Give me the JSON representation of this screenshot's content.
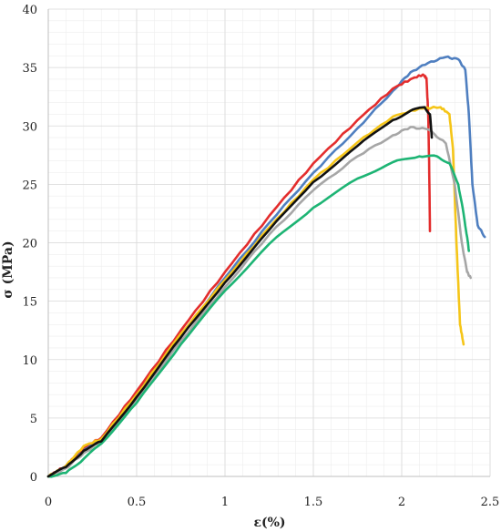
{
  "chart_data": {
    "type": "line",
    "xlabel": "ε(%)",
    "ylabel": "σ (MPa)",
    "xlim": [
      0,
      2.5
    ],
    "ylim": [
      0,
      40
    ],
    "xticks": [
      "0",
      "0.5",
      "1",
      "1.5",
      "2",
      "2.5"
    ],
    "yticks": [
      "0",
      "5",
      "10",
      "15",
      "20",
      "25",
      "30",
      "35",
      "40"
    ],
    "grid": true,
    "series": [
      {
        "color": "#4f7fc0",
        "points": [
          [
            0,
            0
          ],
          [
            0.1,
            0.8
          ],
          [
            0.2,
            2.4
          ],
          [
            0.3,
            3.1
          ],
          [
            0.5,
            7.0
          ],
          [
            0.75,
            12.0
          ],
          [
            1.0,
            17.0
          ],
          [
            1.25,
            21.7
          ],
          [
            1.5,
            26.0
          ],
          [
            1.75,
            29.8
          ],
          [
            1.95,
            33.0
          ],
          [
            2.05,
            34.6
          ],
          [
            2.15,
            35.4
          ],
          [
            2.25,
            35.9
          ],
          [
            2.32,
            35.7
          ],
          [
            2.36,
            34.8
          ],
          [
            2.38,
            31.0
          ],
          [
            2.4,
            25.0
          ],
          [
            2.43,
            21.5
          ],
          [
            2.47,
            20.5
          ]
        ]
      },
      {
        "color": "#e32d2d",
        "points": [
          [
            0,
            0
          ],
          [
            0.1,
            0.9
          ],
          [
            0.2,
            2.5
          ],
          [
            0.3,
            3.3
          ],
          [
            0.5,
            7.3
          ],
          [
            0.75,
            12.5
          ],
          [
            1.0,
            17.5
          ],
          [
            1.25,
            22.3
          ],
          [
            1.5,
            26.8
          ],
          [
            1.75,
            30.5
          ],
          [
            1.95,
            33.2
          ],
          [
            2.05,
            34.0
          ],
          [
            2.12,
            34.4
          ],
          [
            2.14,
            34.1
          ],
          [
            2.15,
            31.0
          ],
          [
            2.155,
            27.0
          ],
          [
            2.16,
            21.0
          ]
        ]
      },
      {
        "color": "#f5c518",
        "points": [
          [
            0,
            0
          ],
          [
            0.1,
            0.9
          ],
          [
            0.2,
            2.6
          ],
          [
            0.3,
            3.2
          ],
          [
            0.5,
            7.0
          ],
          [
            0.75,
            12.2
          ],
          [
            1.0,
            16.8
          ],
          [
            1.25,
            21.3
          ],
          [
            1.5,
            25.4
          ],
          [
            1.75,
            28.6
          ],
          [
            1.95,
            30.8
          ],
          [
            2.1,
            31.5
          ],
          [
            2.22,
            31.6
          ],
          [
            2.27,
            31.0
          ],
          [
            2.29,
            28.0
          ],
          [
            2.31,
            20.0
          ],
          [
            2.33,
            13.0
          ],
          [
            2.35,
            11.3
          ]
        ]
      },
      {
        "color": "#a6a6a6",
        "points": [
          [
            0,
            0
          ],
          [
            0.1,
            0.7
          ],
          [
            0.2,
            2.0
          ],
          [
            0.3,
            3.0
          ],
          [
            0.5,
            6.6
          ],
          [
            0.75,
            11.6
          ],
          [
            1.0,
            16.2
          ],
          [
            1.25,
            20.7
          ],
          [
            1.5,
            24.5
          ],
          [
            1.75,
            27.4
          ],
          [
            1.95,
            29.2
          ],
          [
            2.05,
            29.9
          ],
          [
            2.15,
            29.7
          ],
          [
            2.25,
            28.5
          ],
          [
            2.3,
            25.0
          ],
          [
            2.34,
            20.0
          ],
          [
            2.37,
            17.5
          ],
          [
            2.39,
            17.0
          ]
        ]
      },
      {
        "color": "#1db474",
        "points": [
          [
            0,
            0
          ],
          [
            0.1,
            0.3
          ],
          [
            0.2,
            1.5
          ],
          [
            0.3,
            2.8
          ],
          [
            0.5,
            6.3
          ],
          [
            0.75,
            11.3
          ],
          [
            1.0,
            15.9
          ],
          [
            1.25,
            19.9
          ],
          [
            1.5,
            23.0
          ],
          [
            1.75,
            25.5
          ],
          [
            1.95,
            26.9
          ],
          [
            2.1,
            27.4
          ],
          [
            2.2,
            27.4
          ],
          [
            2.27,
            26.8
          ],
          [
            2.32,
            25.0
          ],
          [
            2.35,
            22.5
          ],
          [
            2.37,
            20.5
          ],
          [
            2.38,
            19.3
          ]
        ]
      },
      {
        "color": "#111111",
        "points": [
          [
            0,
            0
          ],
          [
            0.1,
            0.8
          ],
          [
            0.2,
            2.2
          ],
          [
            0.3,
            3.0
          ],
          [
            0.5,
            6.8
          ],
          [
            0.75,
            11.9
          ],
          [
            1.0,
            16.6
          ],
          [
            1.25,
            21.1
          ],
          [
            1.5,
            25.2
          ],
          [
            1.75,
            28.3
          ],
          [
            1.95,
            30.5
          ],
          [
            2.05,
            31.3
          ],
          [
            2.13,
            31.6
          ],
          [
            2.16,
            31.0
          ],
          [
            2.17,
            29.0
          ]
        ]
      }
    ]
  }
}
